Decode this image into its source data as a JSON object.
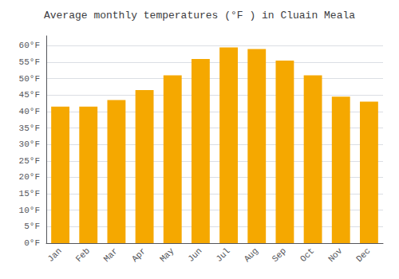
{
  "chart_data": {
    "type": "bar",
    "title": "Average monthly temperatures (°F ) in Cluain Meala",
    "categories": [
      "Jan",
      "Feb",
      "Mar",
      "Apr",
      "May",
      "Jun",
      "Jul",
      "Aug",
      "Sep",
      "Oct",
      "Nov",
      "Dec"
    ],
    "values": [
      41.5,
      41.5,
      43.5,
      46.5,
      51.0,
      56.0,
      59.5,
      59.0,
      55.5,
      51.0,
      44.5,
      43.0
    ],
    "color": "#F5A800",
    "ylim": [
      0,
      63
    ],
    "yticks": [
      {
        "value": 0,
        "label": "0°F"
      },
      {
        "value": 5,
        "label": "5°F"
      },
      {
        "value": 10,
        "label": "10°F"
      },
      {
        "value": 15,
        "label": "15°F"
      },
      {
        "value": 20,
        "label": "20°F"
      },
      {
        "value": 25,
        "label": "25°F"
      },
      {
        "value": 30,
        "label": "30°F"
      },
      {
        "value": 35,
        "label": "35°F"
      },
      {
        "value": 40,
        "label": "40°F"
      },
      {
        "value": 45,
        "label": "45°F"
      },
      {
        "value": 50,
        "label": "50°F"
      },
      {
        "value": 55,
        "label": "55°F"
      },
      {
        "value": 60,
        "label": "60°F"
      }
    ],
    "grid": true
  }
}
